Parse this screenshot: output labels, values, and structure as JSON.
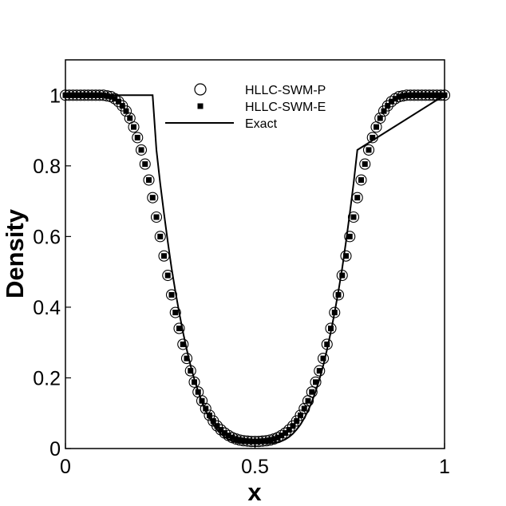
{
  "chart_data": {
    "type": "scatter",
    "title": "",
    "xlabel": "x",
    "ylabel": "Density",
    "xlim": [
      0,
      1
    ],
    "ylim": [
      0,
      1.1
    ],
    "xticks": [
      {
        "value": 0,
        "label": "0"
      },
      {
        "value": 0.5,
        "label": "0.5"
      },
      {
        "value": 1,
        "label": "1"
      }
    ],
    "yticks": [
      {
        "value": 0,
        "label": "0"
      },
      {
        "value": 0.2,
        "label": "0.2"
      },
      {
        "value": 0.4,
        "label": "0.4"
      },
      {
        "value": 0.6,
        "label": "0.6"
      },
      {
        "value": 0.8,
        "label": "0.8"
      },
      {
        "value": 1,
        "label": "1"
      }
    ],
    "grid": false,
    "legend_position": "top-center",
    "series": [
      {
        "name": "HLLC-SWM-P",
        "marker": "open-circle",
        "color": "#000000",
        "x": [
          0.0,
          0.01,
          0.02,
          0.03,
          0.04,
          0.05,
          0.06,
          0.07,
          0.08,
          0.09,
          0.1,
          0.11,
          0.12,
          0.13,
          0.14,
          0.15,
          0.16,
          0.17,
          0.18,
          0.19,
          0.2,
          0.21,
          0.22,
          0.23,
          0.24,
          0.25,
          0.26,
          0.27,
          0.28,
          0.29,
          0.3,
          0.31,
          0.32,
          0.33,
          0.34,
          0.35,
          0.36,
          0.37,
          0.38,
          0.39,
          0.4,
          0.41,
          0.42,
          0.43,
          0.44,
          0.45,
          0.46,
          0.47,
          0.48,
          0.49,
          0.5,
          0.51,
          0.52,
          0.53,
          0.54,
          0.55,
          0.56,
          0.57,
          0.58,
          0.59,
          0.6,
          0.61,
          0.62,
          0.63,
          0.64,
          0.65,
          0.66,
          0.67,
          0.68,
          0.69,
          0.7,
          0.71,
          0.72,
          0.73,
          0.74,
          0.75,
          0.76,
          0.77,
          0.78,
          0.79,
          0.8,
          0.81,
          0.82,
          0.83,
          0.84,
          0.85,
          0.86,
          0.87,
          0.88,
          0.89,
          0.9,
          0.91,
          0.92,
          0.93,
          0.94,
          0.95,
          0.96,
          0.97,
          0.98,
          0.99,
          1.0
        ],
        "y": [
          1.0,
          1.0,
          1.0,
          1.0,
          1.0,
          1.0,
          1.0,
          1.0,
          1.0,
          1.0,
          1.0,
          0.998,
          0.996,
          0.99,
          0.982,
          0.97,
          0.955,
          0.935,
          0.91,
          0.88,
          0.845,
          0.805,
          0.76,
          0.71,
          0.655,
          0.6,
          0.545,
          0.49,
          0.435,
          0.385,
          0.34,
          0.295,
          0.255,
          0.22,
          0.188,
          0.16,
          0.135,
          0.113,
          0.094,
          0.078,
          0.064,
          0.053,
          0.044,
          0.037,
          0.031,
          0.027,
          0.024,
          0.022,
          0.021,
          0.02,
          0.02,
          0.02,
          0.021,
          0.022,
          0.024,
          0.027,
          0.031,
          0.037,
          0.044,
          0.053,
          0.064,
          0.078,
          0.094,
          0.113,
          0.135,
          0.16,
          0.188,
          0.22,
          0.255,
          0.295,
          0.34,
          0.385,
          0.435,
          0.49,
          0.545,
          0.6,
          0.655,
          0.71,
          0.76,
          0.805,
          0.845,
          0.88,
          0.91,
          0.935,
          0.955,
          0.97,
          0.982,
          0.99,
          0.996,
          0.998,
          1.0,
          1.0,
          1.0,
          1.0,
          1.0,
          1.0,
          1.0,
          1.0,
          1.0,
          1.0,
          1.0
        ]
      },
      {
        "name": "HLLC-SWM-E",
        "marker": "filled-square",
        "color": "#000000",
        "x": [
          0.0,
          0.01,
          0.02,
          0.03,
          0.04,
          0.05,
          0.06,
          0.07,
          0.08,
          0.09,
          0.1,
          0.11,
          0.12,
          0.13,
          0.14,
          0.15,
          0.16,
          0.17,
          0.18,
          0.19,
          0.2,
          0.21,
          0.22,
          0.23,
          0.24,
          0.25,
          0.26,
          0.27,
          0.28,
          0.29,
          0.3,
          0.31,
          0.32,
          0.33,
          0.34,
          0.35,
          0.36,
          0.37,
          0.38,
          0.39,
          0.4,
          0.41,
          0.42,
          0.43,
          0.44,
          0.45,
          0.46,
          0.47,
          0.48,
          0.49,
          0.5,
          0.51,
          0.52,
          0.53,
          0.54,
          0.55,
          0.56,
          0.57,
          0.58,
          0.59,
          0.6,
          0.61,
          0.62,
          0.63,
          0.64,
          0.65,
          0.66,
          0.67,
          0.68,
          0.69,
          0.7,
          0.71,
          0.72,
          0.73,
          0.74,
          0.75,
          0.76,
          0.77,
          0.78,
          0.79,
          0.8,
          0.81,
          0.82,
          0.83,
          0.84,
          0.85,
          0.86,
          0.87,
          0.88,
          0.89,
          0.9,
          0.91,
          0.92,
          0.93,
          0.94,
          0.95,
          0.96,
          0.97,
          0.98,
          0.99,
          1.0
        ],
        "y": [
          1.0,
          1.0,
          1.0,
          1.0,
          1.0,
          1.0,
          1.0,
          1.0,
          1.0,
          1.0,
          1.0,
          0.998,
          0.996,
          0.99,
          0.982,
          0.97,
          0.955,
          0.935,
          0.91,
          0.88,
          0.845,
          0.805,
          0.76,
          0.71,
          0.655,
          0.6,
          0.545,
          0.49,
          0.435,
          0.385,
          0.34,
          0.295,
          0.255,
          0.22,
          0.188,
          0.16,
          0.135,
          0.113,
          0.094,
          0.078,
          0.064,
          0.053,
          0.044,
          0.037,
          0.031,
          0.027,
          0.024,
          0.022,
          0.021,
          0.02,
          0.02,
          0.02,
          0.021,
          0.022,
          0.024,
          0.027,
          0.031,
          0.037,
          0.044,
          0.053,
          0.064,
          0.078,
          0.094,
          0.113,
          0.135,
          0.16,
          0.188,
          0.22,
          0.255,
          0.295,
          0.34,
          0.385,
          0.435,
          0.49,
          0.545,
          0.6,
          0.655,
          0.71,
          0.76,
          0.805,
          0.845,
          0.88,
          0.91,
          0.935,
          0.955,
          0.97,
          0.982,
          0.99,
          0.996,
          0.998,
          1.0,
          1.0,
          1.0,
          1.0,
          1.0,
          1.0,
          1.0,
          1.0,
          1.0,
          1.0,
          1.0
        ]
      },
      {
        "name": "Exact",
        "marker": "line",
        "color": "#000000",
        "x": [
          0.0,
          0.23,
          0.24,
          0.25,
          0.26,
          0.27,
          0.28,
          0.29,
          0.3,
          0.31,
          0.32,
          0.33,
          0.34,
          0.35,
          0.36,
          0.37,
          0.38,
          0.39,
          0.4,
          0.41,
          0.42,
          0.43,
          0.44,
          0.45,
          0.46,
          0.47,
          0.48,
          0.49,
          0.5,
          0.51,
          0.52,
          0.53,
          0.54,
          0.55,
          0.56,
          0.57,
          0.58,
          0.59,
          0.6,
          0.61,
          0.62,
          0.63,
          0.64,
          0.65,
          0.66,
          0.67,
          0.68,
          0.69,
          0.7,
          0.71,
          0.72,
          0.73,
          0.74,
          0.75,
          0.76,
          0.77,
          1.0
        ],
        "y": [
          1.0,
          1.0,
          0.845,
          0.75,
          0.665,
          0.585,
          0.51,
          0.445,
          0.385,
          0.33,
          0.28,
          0.235,
          0.196,
          0.162,
          0.132,
          0.107,
          0.086,
          0.068,
          0.054,
          0.042,
          0.033,
          0.026,
          0.021,
          0.018,
          0.016,
          0.015,
          0.015,
          0.015,
          0.015,
          0.015,
          0.015,
          0.015,
          0.015,
          0.016,
          0.018,
          0.021,
          0.026,
          0.033,
          0.042,
          0.054,
          0.068,
          0.086,
          0.107,
          0.132,
          0.162,
          0.196,
          0.235,
          0.28,
          0.33,
          0.385,
          0.445,
          0.51,
          0.585,
          0.665,
          0.75,
          0.845,
          1.0
        ]
      }
    ]
  }
}
